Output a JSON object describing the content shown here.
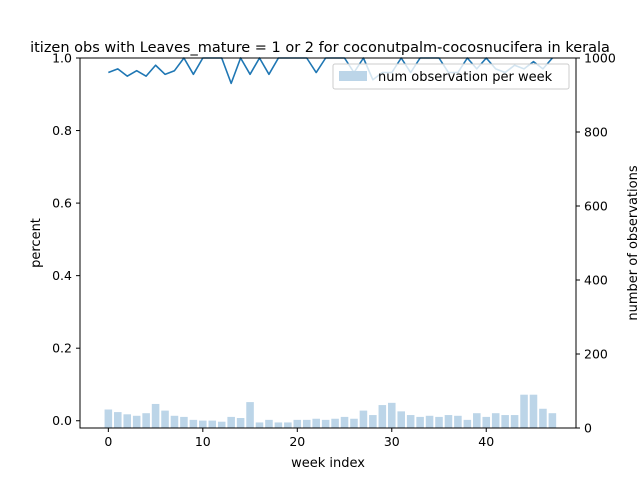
{
  "chart_data": {
    "type": "bar+line",
    "title": "itizen obs with Leaves_mature = 1 or 2 for coconutpalm-cocosnucifera in kerala",
    "xlabel": "week index",
    "ylabel_left": "percent",
    "ylabel_right": "number of observations",
    "xlim": [
      -3,
      49.5
    ],
    "ylim_left": [
      -0.02,
      1.0
    ],
    "ylim_right": [
      0,
      1000
    ],
    "x_ticks": [
      0,
      10,
      20,
      30,
      40
    ],
    "y_left_ticks": [
      0.0,
      0.2,
      0.4,
      0.6,
      0.8,
      1.0
    ],
    "y_right_ticks": [
      0,
      200,
      400,
      600,
      800,
      1000
    ],
    "grid": false,
    "legend": {
      "placement": "top-right",
      "entries": [
        "num observation per week"
      ]
    },
    "colors": {
      "line": "#1f77b4",
      "bars": "#bcd5e8"
    },
    "series": [
      {
        "kind": "line",
        "axis": "left",
        "x": [
          0,
          1,
          2,
          3,
          4,
          5,
          6,
          7,
          8,
          9,
          10,
          11,
          12,
          13,
          14,
          15,
          16,
          17,
          18,
          19,
          20,
          21,
          22,
          23,
          24,
          25,
          26,
          27,
          28,
          29,
          30,
          31,
          32,
          33,
          34,
          35,
          36,
          37,
          38,
          39,
          40,
          41,
          42,
          43,
          44,
          45,
          46,
          47
        ],
        "values": [
          0.96,
          0.97,
          0.95,
          0.965,
          0.95,
          0.98,
          0.955,
          0.965,
          1.0,
          0.955,
          1.0,
          1.0,
          1.0,
          0.93,
          1.0,
          0.955,
          1.0,
          0.955,
          1.0,
          1.0,
          1.0,
          1.0,
          0.96,
          1.0,
          1.0,
          1.0,
          0.96,
          1.0,
          0.94,
          0.96,
          0.96,
          1.0,
          0.96,
          1.0,
          1.0,
          1.0,
          0.96,
          0.96,
          1.0,
          0.97,
          1.0,
          0.97,
          0.96,
          0.98,
          0.97,
          0.99,
          0.97,
          1.0
        ]
      },
      {
        "kind": "bar",
        "axis": "right",
        "name": "num observation per week",
        "x": [
          0,
          1,
          2,
          3,
          4,
          5,
          6,
          7,
          8,
          9,
          10,
          11,
          12,
          13,
          14,
          15,
          16,
          17,
          18,
          19,
          20,
          21,
          22,
          23,
          24,
          25,
          26,
          27,
          28,
          29,
          30,
          31,
          32,
          33,
          34,
          35,
          36,
          37,
          38,
          39,
          40,
          41,
          42,
          43,
          44,
          45,
          46,
          47
        ],
        "values": [
          50,
          43,
          37,
          33,
          40,
          65,
          47,
          33,
          30,
          22,
          20,
          20,
          17,
          30,
          27,
          70,
          15,
          22,
          15,
          15,
          22,
          22,
          25,
          22,
          25,
          30,
          25,
          47,
          35,
          62,
          68,
          45,
          35,
          30,
          33,
          30,
          35,
          33,
          22,
          40,
          30,
          40,
          35,
          35,
          90,
          90,
          52,
          40
        ]
      }
    ]
  }
}
